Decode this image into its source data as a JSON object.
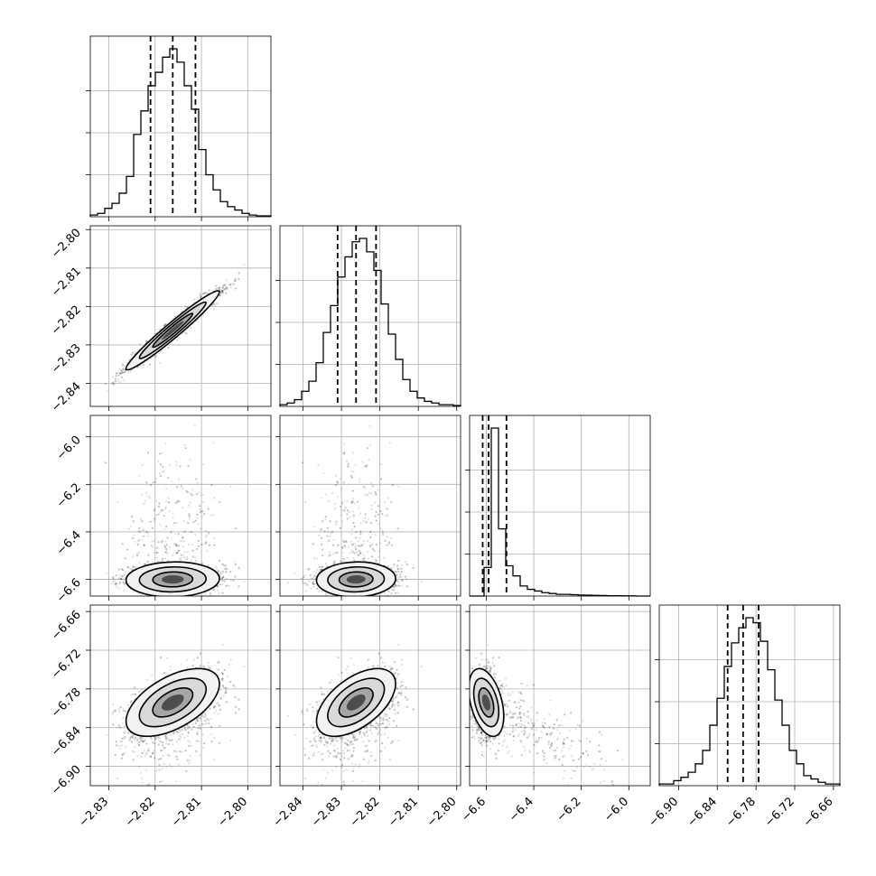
{
  "chart_data": {
    "type": "corner",
    "params": [
      {
        "range": [
          -2.834,
          -2.795
        ],
        "ticks": [
          -2.83,
          -2.82,
          -2.81,
          -2.8
        ],
        "tick_labels": [
          "−2.83",
          "−2.82",
          "−2.81",
          "−2.80"
        ],
        "quantiles": [
          -2.821,
          -2.8162,
          -2.8113
        ],
        "center": -2.8162,
        "sigma": 0.0048,
        "skew": 0
      },
      {
        "range": [
          -2.846,
          -2.799
        ],
        "ticks": [
          -2.84,
          -2.83,
          -2.82,
          -2.81,
          -2.8
        ],
        "tick_labels": [
          "−2.84",
          "−2.83",
          "−2.82",
          "−2.81",
          "−2.80"
        ],
        "quantiles": [
          -2.831,
          -2.8262,
          -2.821
        ],
        "center": -2.8262,
        "sigma": 0.0049,
        "skew": 0
      },
      {
        "range": [
          -6.67,
          -5.91
        ],
        "ticks": [
          -6.6,
          -6.4,
          -6.2,
          -6.0
        ],
        "tick_labels": [
          "−6.6",
          "−6.4",
          "−6.2",
          "−6.0"
        ],
        "quantiles": [
          -6.615,
          -6.59,
          -6.515
        ],
        "center": -6.6,
        "sigma": 0.035,
        "skew": 1
      },
      {
        "range": [
          -6.93,
          -6.65
        ],
        "ticks": [
          -6.9,
          -6.84,
          -6.78,
          -6.72,
          -6.66
        ],
        "tick_labels": [
          "−6.90",
          "−6.84",
          "−6.78",
          "−6.72",
          "−6.66"
        ],
        "quantiles": [
          -6.824,
          -6.8,
          -6.776
        ],
        "center": -6.801,
        "sigma": 0.025,
        "skew": 0
      }
    ],
    "histograms": [
      [
        0.01,
        0.02,
        0.05,
        0.08,
        0.14,
        0.24,
        0.49,
        0.63,
        0.78,
        0.86,
        0.95,
        1.0,
        0.92,
        0.78,
        0.64,
        0.4,
        0.25,
        0.16,
        0.09,
        0.06,
        0.04,
        0.02,
        0.01,
        0.005,
        0.005
      ],
      [
        0.01,
        0.02,
        0.04,
        0.09,
        0.15,
        0.26,
        0.44,
        0.6,
        0.77,
        0.89,
        0.98,
        1.0,
        0.92,
        0.81,
        0.61,
        0.43,
        0.28,
        0.16,
        0.09,
        0.05,
        0.03,
        0.02,
        0.01,
        0.01,
        0.005
      ],
      [
        0.0,
        0.0,
        0.17,
        1.0,
        0.4,
        0.18,
        0.12,
        0.06,
        0.04,
        0.03,
        0.02,
        0.015,
        0.01,
        0.01,
        0.008,
        0.006,
        0.005,
        0.004,
        0.003,
        0.002,
        0.002,
        0.001,
        0.001,
        0.0,
        0.0
      ],
      [
        0.01,
        0.01,
        0.03,
        0.05,
        0.08,
        0.13,
        0.21,
        0.36,
        0.52,
        0.71,
        0.85,
        0.94,
        1.0,
        0.97,
        0.86,
        0.69,
        0.51,
        0.36,
        0.21,
        0.13,
        0.06,
        0.04,
        0.02,
        0.01,
        0.01
      ]
    ],
    "correlations": [
      [
        1.0,
        0.97,
        0.05,
        0.55
      ],
      [
        0.97,
        1.0,
        0.05,
        0.55
      ],
      [
        0.05,
        0.05,
        1.0,
        -0.4
      ],
      [
        0.55,
        0.55,
        -0.4,
        1.0
      ]
    ],
    "grid_lines": true,
    "legend": "none"
  }
}
